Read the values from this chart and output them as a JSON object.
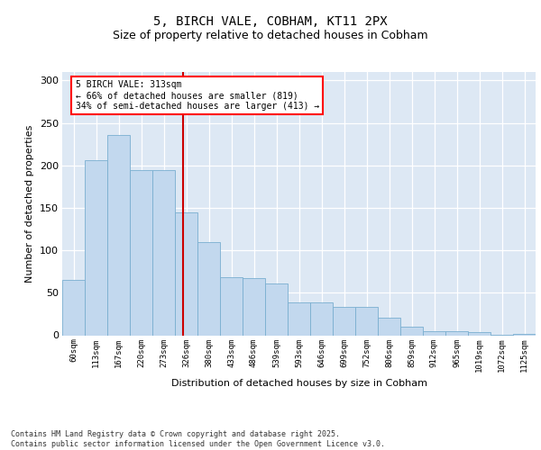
{
  "title_line1": "5, BIRCH VALE, COBHAM, KT11 2PX",
  "title_line2": "Size of property relative to detached houses in Cobham",
  "xlabel": "Distribution of detached houses by size in Cobham",
  "ylabel": "Number of detached properties",
  "categories": [
    "60sqm",
    "113sqm",
    "167sqm",
    "220sqm",
    "273sqm",
    "326sqm",
    "380sqm",
    "433sqm",
    "486sqm",
    "539sqm",
    "593sqm",
    "646sqm",
    "699sqm",
    "752sqm",
    "806sqm",
    "859sqm",
    "912sqm",
    "965sqm",
    "1019sqm",
    "1072sqm",
    "1125sqm"
  ],
  "bar_values": [
    65,
    206,
    236,
    194,
    194,
    145,
    110,
    68,
    67,
    61,
    39,
    39,
    33,
    33,
    21,
    10,
    5,
    5,
    4,
    1,
    2
  ],
  "bar_color": "#c2d8ee",
  "bar_edge_color": "#7aaed0",
  "vline_color": "#cc0000",
  "annotation_text": "5 BIRCH VALE: 313sqm\n← 66% of detached houses are smaller (819)\n34% of semi-detached houses are larger (413) →",
  "background_color": "#dde8f4",
  "grid_color": "#ffffff",
  "footnote": "Contains HM Land Registry data © Crown copyright and database right 2025.\nContains public sector information licensed under the Open Government Licence v3.0.",
  "ylim": [
    0,
    310
  ],
  "yticks": [
    0,
    50,
    100,
    150,
    200,
    250,
    300
  ]
}
